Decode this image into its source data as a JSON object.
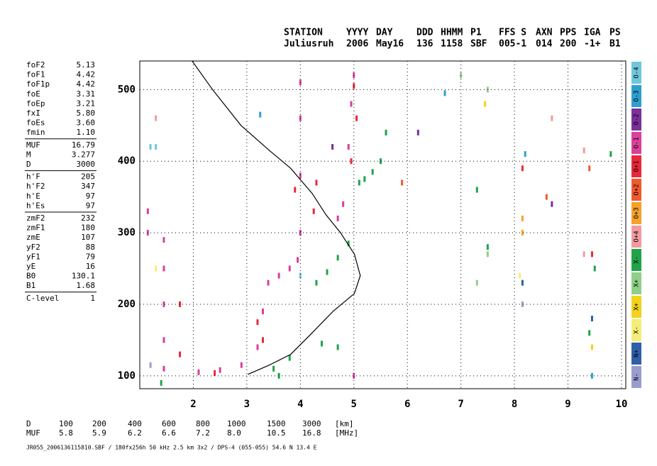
{
  "header": [
    [
      "STATION",
      "Juliusruh"
    ],
    [
      "YYYY",
      "2006"
    ],
    [
      "DAY",
      "May16"
    ],
    [
      "DDD",
      "136"
    ],
    [
      "HHMM",
      "1158"
    ],
    [
      "P1",
      "SBF"
    ],
    [
      "FFS S",
      "005-1"
    ],
    [
      "AXN",
      "014"
    ],
    [
      "PPS",
      "200"
    ],
    [
      "IGA",
      "-1+"
    ],
    [
      "PS",
      "B1"
    ]
  ],
  "parameters": [
    [
      [
        "foF2",
        "5.13"
      ],
      [
        "foF1",
        "4.42"
      ],
      [
        "foF1p",
        "4.42"
      ],
      [
        "foE",
        "3.31"
      ],
      [
        "foEp",
        "3.21"
      ],
      [
        "fxI",
        "5.80"
      ],
      [
        "foEs",
        "3.60"
      ],
      [
        "fmin",
        "1.10"
      ]
    ],
    [
      [
        "MUF",
        "16.79"
      ],
      [
        "M",
        "3.277"
      ],
      [
        "D",
        "3000"
      ]
    ],
    [
      [
        "h'F",
        "205"
      ],
      [
        "h'F2",
        "347"
      ],
      [
        "h'E",
        "97"
      ],
      [
        "h'Es",
        "97"
      ]
    ],
    [
      [
        "zmF2",
        "232"
      ],
      [
        "zmF1",
        "180"
      ],
      [
        "zmE",
        "107"
      ],
      [
        "yF2",
        "88"
      ],
      [
        "yF1",
        "79"
      ],
      [
        "yE",
        "16"
      ],
      [
        "B0",
        "130.1"
      ],
      [
        "B1",
        "1.68"
      ]
    ],
    [
      [
        "C-level",
        "1"
      ]
    ]
  ],
  "distance_table": [
    [
      "D",
      "100",
      "200",
      "400",
      "600",
      "800",
      "1000",
      "1500",
      "3000",
      "[km]"
    ],
    [
      "MUF",
      "5.8",
      "5.9",
      "6.2",
      "6.6",
      "7.2",
      "8.0",
      "10.5",
      "16.8",
      "[MHz]"
    ]
  ],
  "footer": "JR055_2006136115810.SBF / 180fx256h 50 kHz 2.5 km 3x2 / DPS-4 (055-055) 54.6 N 13.4 E",
  "chart_data": {
    "type": "scatter",
    "xlim": [
      1,
      10.08
    ],
    "ylim": [
      82,
      540
    ],
    "xticks": [
      2,
      3,
      4,
      5,
      6,
      7,
      8,
      9,
      10
    ],
    "yticks": [
      100,
      200,
      300,
      400,
      500
    ],
    "grid": true,
    "profile": {
      "color": "#000000",
      "x": [
        1.94,
        2.36,
        2.89,
        3.42,
        3.82,
        4.22,
        4.48,
        4.75,
        5.01,
        5.12,
        5.01,
        4.61,
        4.22,
        3.82,
        3.42,
        3.02
      ],
      "values": [
        544,
        500,
        450,
        415,
        390,
        355,
        325,
        300,
        270,
        240,
        215,
        190,
        160,
        130,
        115,
        102
      ]
    },
    "series": [
      {
        "name": "O-4",
        "color": "#6fc7dc",
        "x": [
          1.2,
          1.3,
          4.0
        ],
        "values": [
          420,
          420,
          240
        ]
      },
      {
        "name": "O-3",
        "color": "#2e9fd0",
        "x": [
          6.7,
          3.25,
          8.2,
          9.45
        ],
        "values": [
          495,
          465,
          410,
          100
        ]
      },
      {
        "name": "O-2",
        "color": "#7a2f9a",
        "x": [
          6.2,
          8.7,
          4.6
        ],
        "values": [
          440,
          340,
          420
        ]
      },
      {
        "name": "O-1",
        "color": "#d9409b",
        "x": [
          1.45,
          1.45,
          1.45,
          1.45,
          1.45,
          2.1,
          2.5,
          2.9,
          3.2,
          3.4,
          3.6,
          3.8,
          3.95,
          4.0,
          4.0,
          4.0,
          4.0,
          4.7,
          4.8,
          4.9,
          4.95,
          5.0,
          1.15,
          1.15,
          5.0,
          3.3
        ],
        "values": [
          110,
          150,
          200,
          250,
          290,
          105,
          108,
          115,
          140,
          230,
          240,
          250,
          262,
          300,
          380,
          460,
          510,
          320,
          340,
          420,
          480,
          520,
          300,
          330,
          100,
          190
        ]
      },
      {
        "name": "O+1",
        "color": "#e8283a",
        "x": [
          1.75,
          1.75,
          2.4,
          3.2,
          3.3,
          3.9,
          4.25,
          4.3,
          4.95,
          5.05,
          8.15,
          9.45,
          5.0
        ],
        "values": [
          200,
          130,
          104,
          175,
          150,
          360,
          330,
          370,
          400,
          460,
          390,
          270,
          505
        ]
      },
      {
        "name": "O+2",
        "color": "#ef5a2f",
        "x": [
          9.4,
          8.6,
          5.9
        ],
        "values": [
          390,
          350,
          370
        ]
      },
      {
        "name": "O+3",
        "color": "#f5a12a",
        "x": [
          8.15,
          8.15
        ],
        "values": [
          320,
          300
        ]
      },
      {
        "name": "O+4",
        "color": "#f29aa0",
        "x": [
          1.3,
          9.3,
          8.7,
          9.3
        ],
        "values": [
          460,
          415,
          460,
          270
        ]
      },
      {
        "name": "X-",
        "color": "#1fa34a",
        "x": [
          1.4,
          4.3,
          4.5,
          4.7,
          4.9,
          5.1,
          5.2,
          5.35,
          5.5,
          5.6,
          3.5,
          3.8,
          4.4,
          4.7,
          7.5,
          9.5,
          9.8,
          9.4,
          7.3,
          3.6
        ],
        "values": [
          90,
          230,
          245,
          265,
          285,
          370,
          375,
          385,
          400,
          440,
          110,
          125,
          145,
          140,
          280,
          250,
          410,
          160,
          360,
          100
        ]
      },
      {
        "name": "X+",
        "color": "#8fcf8a",
        "x": [
          7.5,
          7.3,
          7.5,
          7.0
        ],
        "values": [
          500,
          230,
          270,
          520
        ]
      },
      {
        "name": "X+",
        "color": "#f2d21b",
        "x": [
          7.45,
          9.45
        ],
        "values": [
          480,
          140
        ]
      },
      {
        "name": "X-",
        "color": "#f4ee78",
        "x": [
          1.3,
          8.1
        ],
        "values": [
          250,
          240
        ]
      },
      {
        "name": "N+",
        "color": "#2f5fa8",
        "x": [
          8.15,
          9.45
        ],
        "values": [
          230,
          180
        ]
      },
      {
        "name": "N-",
        "color": "#9a9ccf",
        "x": [
          1.2,
          8.15
        ],
        "values": [
          115,
          200
        ]
      }
    ]
  }
}
